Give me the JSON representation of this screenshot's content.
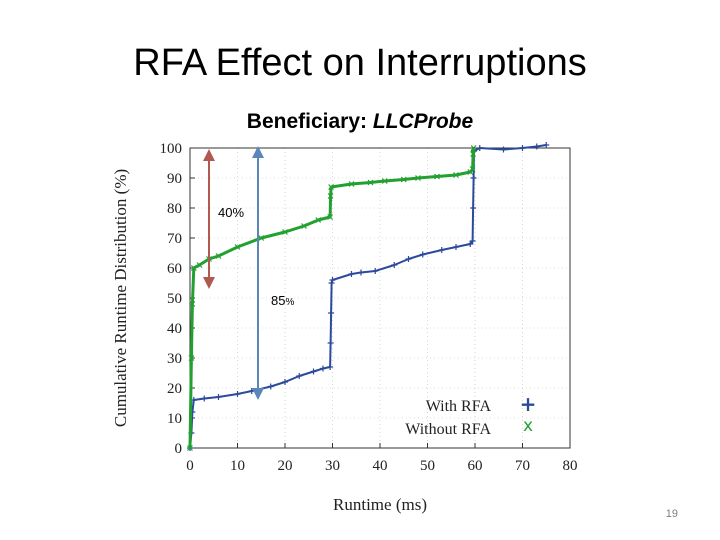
{
  "slide": {
    "title": "RFA Effect on Interruptions",
    "subtitle_prefix": "Beneficiary: ",
    "subtitle_name": "LLCProbe",
    "page_number": "19"
  },
  "colors": {
    "with_rfa": "#2b4a9c",
    "without_rfa": "#22a030",
    "arrow_40": "#b05a4f",
    "arrow_85": "#5b86b8"
  },
  "annotations": {
    "pct40": "40%",
    "pct85_main": "85",
    "pct85_sign": "%"
  },
  "chart_data": {
    "type": "line",
    "xlabel": "Runtime (ms)",
    "ylabel": "Cumulative Runtime Distribution (%)",
    "xlim": [
      0,
      80
    ],
    "ylim": [
      0,
      100
    ],
    "x_ticks": [
      0,
      10,
      20,
      30,
      40,
      50,
      60,
      70,
      80
    ],
    "y_ticks": [
      0,
      10,
      20,
      30,
      40,
      50,
      60,
      70,
      80,
      90,
      100
    ],
    "legend": {
      "position": "bottom-right",
      "entries": [
        "With RFA",
        "Without RFA"
      ]
    },
    "series": [
      {
        "name": "With RFA",
        "marker": "+",
        "points": [
          [
            0,
            0
          ],
          [
            0.3,
            5
          ],
          [
            0.5,
            12
          ],
          [
            0.8,
            16
          ],
          [
            3,
            16.5
          ],
          [
            6,
            17
          ],
          [
            10,
            18
          ],
          [
            13,
            19
          ],
          [
            17,
            20.5
          ],
          [
            20,
            22
          ],
          [
            23,
            24
          ],
          [
            26,
            25.5
          ],
          [
            28,
            26.5
          ],
          [
            29.5,
            27
          ],
          [
            29.6,
            35
          ],
          [
            29.7,
            45
          ],
          [
            29.8,
            55
          ],
          [
            30,
            56
          ],
          [
            34,
            58
          ],
          [
            36,
            58.5
          ],
          [
            39,
            59
          ],
          [
            43,
            61
          ],
          [
            46,
            63
          ],
          [
            49,
            64.5
          ],
          [
            53,
            66
          ],
          [
            56,
            67
          ],
          [
            59,
            68
          ],
          [
            59.5,
            69
          ],
          [
            59.6,
            80
          ],
          [
            59.7,
            90
          ],
          [
            59.8,
            99
          ],
          [
            61,
            100
          ],
          [
            66,
            99.5
          ],
          [
            70,
            100
          ],
          [
            73,
            100.5
          ],
          [
            75,
            101
          ]
        ]
      },
      {
        "name": "Without RFA",
        "marker": "x",
        "points": [
          [
            0,
            0
          ],
          [
            0.3,
            30
          ],
          [
            0.5,
            48
          ],
          [
            0.8,
            60
          ],
          [
            2,
            61
          ],
          [
            4,
            63
          ],
          [
            6,
            64
          ],
          [
            10,
            67
          ],
          [
            15,
            70
          ],
          [
            20,
            72
          ],
          [
            24,
            74
          ],
          [
            27,
            76
          ],
          [
            29.5,
            77
          ],
          [
            29.6,
            84
          ],
          [
            29.7,
            87
          ],
          [
            34,
            88
          ],
          [
            38,
            88.5
          ],
          [
            41,
            89
          ],
          [
            45,
            89.5
          ],
          [
            48,
            90
          ],
          [
            52,
            90.5
          ],
          [
            56,
            91
          ],
          [
            59,
            92
          ],
          [
            59.5,
            93
          ],
          [
            59.6,
            98
          ],
          [
            59.7,
            100
          ]
        ]
      }
    ]
  }
}
